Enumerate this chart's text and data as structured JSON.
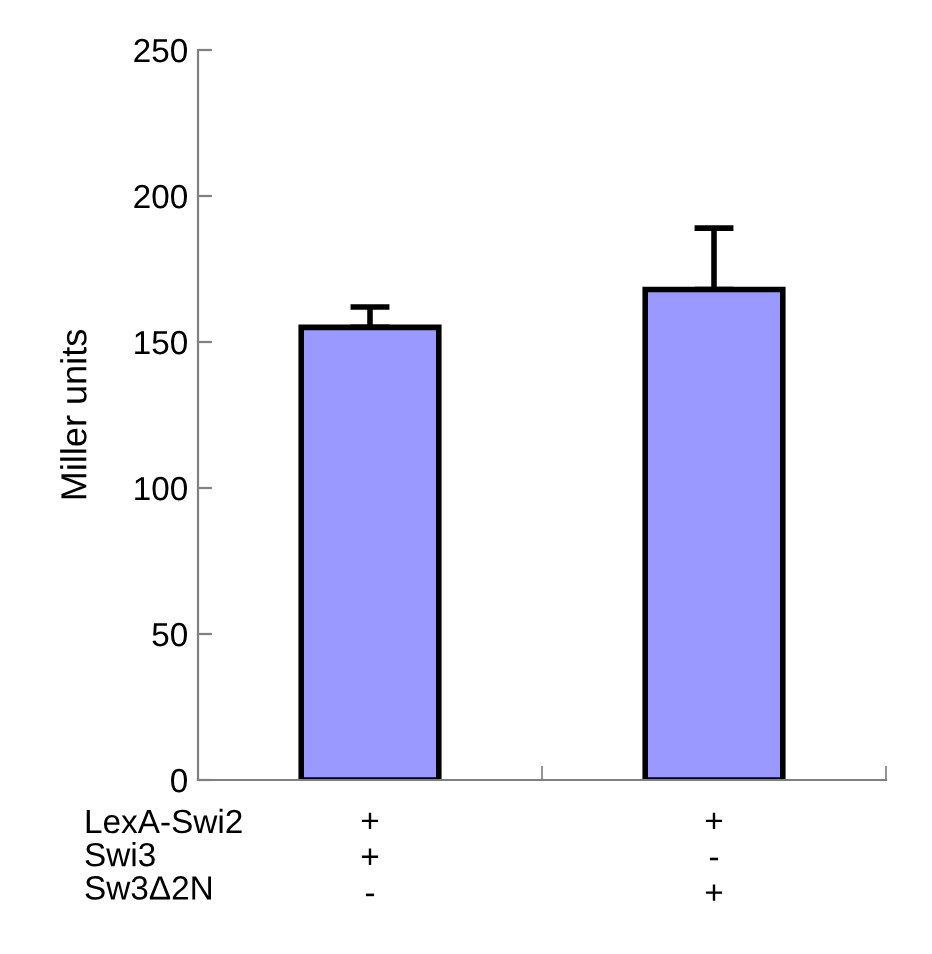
{
  "chart_data": {
    "type": "bar",
    "ylabel": "Miller units",
    "categories": [
      "+\n+\n-",
      "+\n-\n+"
    ],
    "values": [
      155,
      168
    ],
    "errors": [
      [
        155,
        162
      ],
      [
        168,
        189
      ]
    ],
    "color": "#9999ff",
    "ylim": [
      0,
      250
    ],
    "yticks": [
      0,
      50,
      100,
      150,
      200,
      250
    ],
    "grid": false,
    "legend": false,
    "annotations": [
      "LexA-Swi2",
      "Swi3",
      "Sw3Δ2N"
    ]
  }
}
